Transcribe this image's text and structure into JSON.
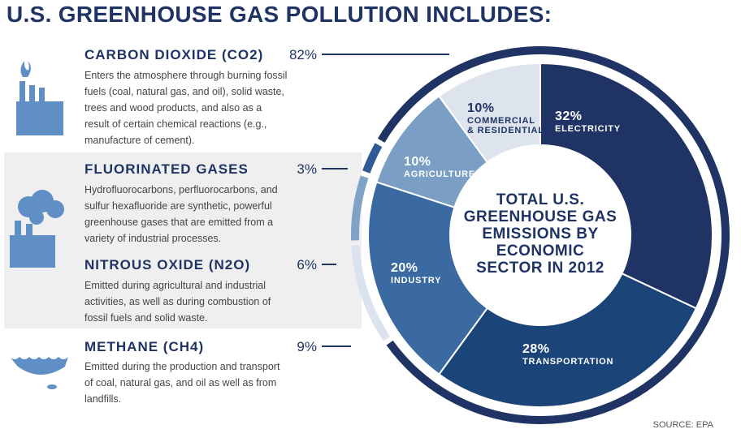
{
  "title": "U.S. GREENHOUSE GAS POLLUTION INCLUDES:",
  "descriptions": [
    "Enters the atmosphere through burning fossil fuels (coal, natural gas, and oil), solid waste, trees and wood products, and also as a result of certain chemical reactions (e.g., manufacture of cement).",
    "Hydrofluorocarbons, perfluorocarbons, and sulfur hexafluoride are synthetic, powerful greenhouse gases that are emitted from a variety of industrial processes.",
    "Emitted during agricultural and industrial activities, as well as during combustion of fossil fuels and solid waste.",
    "Emitted during the production and transport of coal, natural gas, and oil as well as from landfills."
  ],
  "source": "SOURCE: EPA",
  "chart_data": [
    {
      "type": "ring",
      "categories": [
        "CARBON DIOXIDE (CO2)",
        "FLUORINATED GASES",
        "NITROUS OXIDE (N2O)",
        "METHANE (CH4)"
      ],
      "values": [
        82,
        3,
        6,
        9
      ],
      "value_labels": [
        "82%",
        "3%",
        "6%",
        "9%"
      ],
      "colors": [
        "#1f3464",
        "#2e5b93",
        "#7fa3c6",
        "#dbe3ee"
      ]
    },
    {
      "type": "donut",
      "title": "TOTAL U.S. GREENHOUSE GAS EMISSIONS BY ECONOMIC SECTOR IN 2012",
      "categories": [
        "ELECTRICITY",
        "TRANSPORTATION",
        "INDUSTRY",
        "AGRICULTURE",
        "COMMERCIAL & RESIDENTIAL"
      ],
      "values": [
        32,
        28,
        20,
        10,
        10
      ],
      "value_labels": [
        "32%",
        "28%",
        "20%",
        "10%",
        "10%"
      ],
      "colors": [
        "#1f3464",
        "#1b4479",
        "#3a6aa1",
        "#7a9ec4",
        "#dde4ee"
      ],
      "label_colors": [
        "#ffffff",
        "#ffffff",
        "#ffffff",
        "#ffffff",
        "#1f3464"
      ]
    }
  ]
}
